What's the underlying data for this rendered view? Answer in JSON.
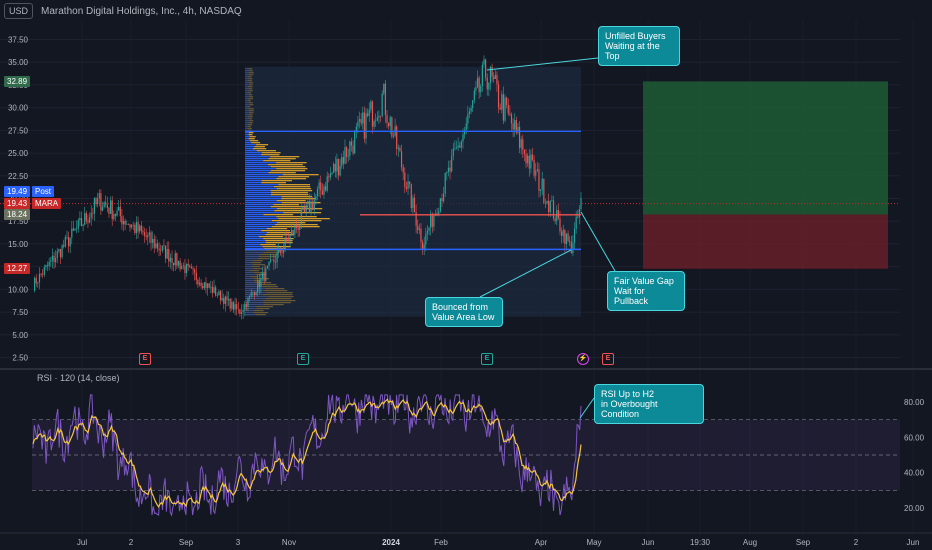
{
  "header": {
    "currency": "USD",
    "title": "Marathon Digital Holdings, Inc., 4h, NASDAQ"
  },
  "price_tags": [
    {
      "value": "32.89",
      "color": "#2f6b4a"
    },
    {
      "value": "19.49",
      "label": "Post",
      "color": "#2962ff"
    },
    {
      "value": "19.43",
      "label": "MARA",
      "color": "#c62828"
    },
    {
      "value": "18.24",
      "color": "#6b7360"
    },
    {
      "value": "12.27",
      "color": "#c62828"
    }
  ],
  "callouts": {
    "unfilled": "Unfilled Buyers\nWaiting at the\nTop",
    "fvg": "Fair Value Gap\nWait for\nPullback",
    "bounced": "Bounced from\nValue Area Low",
    "rsi": "RSI Up to H2\nin Overbought Condition"
  },
  "events": [
    {
      "symbol": "E",
      "color": "#ef5350"
    },
    {
      "symbol": "E",
      "color": "#26a69a"
    },
    {
      "symbol": "E",
      "color": "#26a69a"
    },
    {
      "symbol": "⚡",
      "color": "#e040fb"
    },
    {
      "symbol": "E",
      "color": "#ef5350"
    }
  ],
  "rsi": {
    "title": "RSI · 120 (14, close)",
    "levels": [
      70,
      50,
      30
    ]
  },
  "chart_data": [
    {
      "type": "candlestick",
      "x_ticks": [
        "Jul",
        "2",
        "Sep",
        "3",
        "Nov",
        "2024",
        "Feb",
        "Apr",
        "May",
        "Jun",
        "19:30",
        "Aug",
        "Sep",
        "2",
        "Jun"
      ],
      "y_ticks": [
        2.5,
        5.0,
        7.5,
        10.0,
        12.5,
        15.0,
        17.5,
        20.0,
        22.5,
        25.0,
        27.5,
        30.0,
        32.5,
        35.0,
        37.5
      ],
      "ylim": [
        1.5,
        39.5
      ],
      "last_price": 19.43,
      "key_points": [
        {
          "label": "start",
          "value": 10.5
        },
        {
          "label": "Jul high",
          "value": 19.8
        },
        {
          "label": "Oct low",
          "value": 7.5
        },
        {
          "label": "Dec high",
          "value": 31.3
        },
        {
          "label": "Jan low",
          "value": 15.0
        },
        {
          "label": "Feb high",
          "value": 34.0
        },
        {
          "label": "Apr low",
          "value": 14.5
        },
        {
          "label": "last",
          "value": 19.43
        }
      ],
      "volume_profile_levels": {
        "value_area_high": 27.4,
        "poc": 18.2,
        "value_area_low": 14.4
      },
      "trade_zone": {
        "entry": 18.24,
        "target": 32.89,
        "stop": 12.27
      },
      "annotations": [
        "Unfilled Buyers Waiting at the Top",
        "Fair Value Gap Wait for Pullback",
        "Bounced from Value Area Low"
      ]
    },
    {
      "type": "line",
      "name": "RSI",
      "y_ticks": [
        20.0,
        40.0,
        60.0,
        80.0
      ],
      "ylim": [
        15,
        88
      ],
      "levels": [
        70,
        50,
        30
      ],
      "key_points": [
        {
          "label": "start",
          "value": 57
        },
        {
          "label": "Jul",
          "value": 68
        },
        {
          "label": "Sep low",
          "value": 20
        },
        {
          "label": "Nov",
          "value": 47
        },
        {
          "label": "Dec high",
          "value": 80
        },
        {
          "label": "Feb high",
          "value": 77
        },
        {
          "label": "Apr low",
          "value": 22
        },
        {
          "label": "last",
          "value": 78
        }
      ]
    }
  ]
}
